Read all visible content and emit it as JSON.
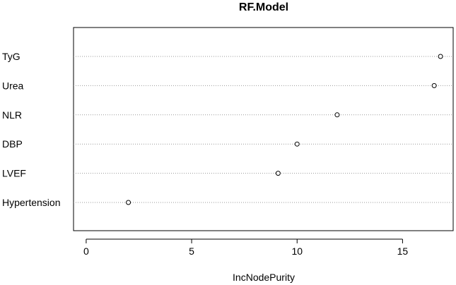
{
  "chart_data": {
    "type": "scatter",
    "title": "RF.Model",
    "xlabel": "IncNodePurity",
    "ylabel": "",
    "xlim": [
      -0.6,
      17.4
    ],
    "xticks": [
      0,
      5,
      10,
      15
    ],
    "grid": "dotted-horizontal",
    "categories": [
      "TyG",
      "Urea",
      "NLR",
      "DBP",
      "LVEF",
      "Hypertension"
    ],
    "values": [
      16.8,
      16.5,
      11.9,
      10.0,
      9.1,
      2.0
    ]
  }
}
